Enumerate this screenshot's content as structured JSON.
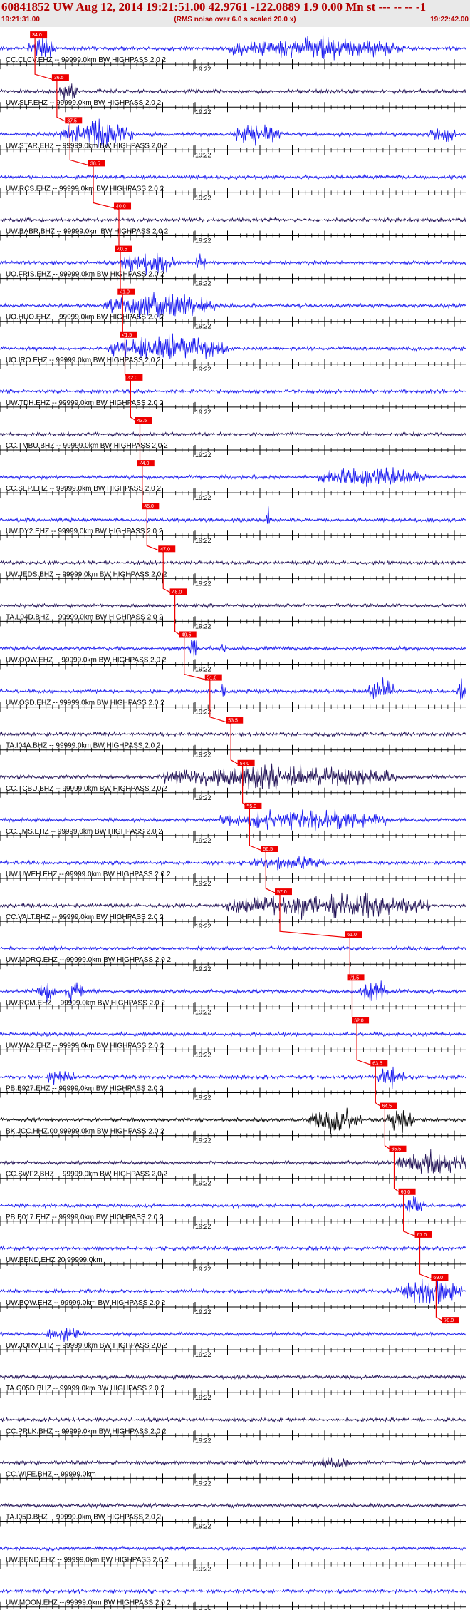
{
  "header": {
    "title": "60841852 UW Aug 12, 2014 19:21:51.00   42.9761 -122.0889  1.9 0.00 Mn st --- -- --   -1",
    "start_time": "19:21:31.00",
    "rms_note": "(RMS noise over 6.0 s scaled 20.0 x)",
    "end_time": "19:22:42.00"
  },
  "minute_label": "19:22",
  "colors": {
    "header_bg": "#e9e9e9",
    "header_text": "#b40000",
    "blue": "#1414ee",
    "dark": "#1a0a50",
    "pick": "#ee0000",
    "axis": "#000000"
  },
  "traces": [
    {
      "label": "CC.CLCV.EHZ -- 99999.0km BW  HIGHPASS  2.0  2",
      "color": "blue",
      "pick": "34.0",
      "pick_x": 0.075,
      "bursts": [
        [
          0.09,
          0.03,
          1.0
        ],
        [
          0.68,
          0.19,
          0.9
        ]
      ]
    },
    {
      "label": "UW.SLF.EHZ -- 99999.0km BW  HIGHPASS  2.0  2",
      "color": "dark",
      "pick": "36.5",
      "pick_x": 0.122,
      "bursts": [
        [
          0.145,
          0.02,
          1.0
        ]
      ]
    },
    {
      "label": "UW.STAR.EHZ -- 99999.0km BW  HIGHPASS  2.0  2",
      "color": "blue",
      "pick": "37.5",
      "pick_x": 0.15,
      "bursts": [
        [
          0.21,
          0.08,
          1.0
        ],
        [
          0.55,
          0.05,
          1.0
        ],
        [
          0.95,
          0.03,
          0.7
        ]
      ]
    },
    {
      "label": "UW.RCS.EHZ -- 99999.0km BW  HIGHPASS  2.0  2",
      "color": "blue",
      "pick": "38.5",
      "pick_x": 0.2,
      "bursts": []
    },
    {
      "label": "UW.BABR.BHZ -- 99999.0km BW  HIGHPASS  2.0  2",
      "color": "dark",
      "pick": "40.0",
      "pick_x": 0.255,
      "bursts": []
    },
    {
      "label": "UO.FRIS.EHZ -- 99999.0km BW  HIGHPASS  2.0  2",
      "color": "blue",
      "pick": "40.5",
      "pick_x": 0.258,
      "bursts": [
        [
          0.32,
          0.06,
          1.0
        ],
        [
          0.43,
          0.01,
          0.8
        ]
      ]
    },
    {
      "label": "UO.HUO.EHZ -- 99999.0km BW  HIGHPASS  2.0  2",
      "color": "blue",
      "pick": "41.0",
      "pick_x": 0.263,
      "bursts": [
        [
          0.34,
          0.12,
          1.0
        ]
      ]
    },
    {
      "label": "UO.IRO.EHZ -- 99999.0km BW  HIGHPASS  2.0  2",
      "color": "blue",
      "pick": "41.5",
      "pick_x": 0.268,
      "bursts": [
        [
          0.36,
          0.13,
          1.0
        ]
      ]
    },
    {
      "label": "UW.TDH.EHZ -- 99999.0km BW  HIGHPASS  2.0  2",
      "color": "blue",
      "pick": "42.0",
      "pick_x": 0.28,
      "bursts": []
    },
    {
      "label": "CC.TMBU.BHZ -- 99999.0km BW  HIGHPASS  2.0  2",
      "color": "dark",
      "pick": "43.5",
      "pick_x": 0.3,
      "bursts": []
    },
    {
      "label": "CC.SEP.EHZ -- 99999.0km BW  HIGHPASS  2.0  2",
      "color": "blue",
      "pick": "44.0",
      "pick_x": 0.305,
      "bursts": [
        [
          0.8,
          0.12,
          0.8
        ]
      ]
    },
    {
      "label": "UW.DY2.EHZ -- 99999.0km BW  HIGHPASS  2.0  2",
      "color": "blue",
      "pick": "45.0",
      "pick_x": 0.315,
      "bursts": [
        [
          0.575,
          0.005,
          0.9
        ]
      ]
    },
    {
      "label": "UW.JEDS.BHZ -- 99999.0km BW  HIGHPASS  2.0  2",
      "color": "dark",
      "pick": "47.0",
      "pick_x": 0.35,
      "bursts": []
    },
    {
      "label": "TA.L04D.BHZ -- 99999.0km BW  HIGHPASS  2.0  2",
      "color": "dark",
      "pick": "48.0",
      "pick_x": 0.375,
      "bursts": []
    },
    {
      "label": "UW.OOW.EHZ -- 99999.0km BW  HIGHPASS  2.0  2",
      "color": "blue",
      "pick": "49.5",
      "pick_x": 0.395,
      "bursts": [
        [
          0.415,
          0.01,
          1.0
        ],
        [
          0.48,
          0.005,
          1.0
        ]
      ]
    },
    {
      "label": "UW.OSD.EHZ -- 99999.0km BW  HIGHPASS  2.0  2",
      "color": "blue",
      "pick": "51.0",
      "pick_x": 0.45,
      "bursts": [
        [
          0.48,
          0.005,
          1.0
        ],
        [
          0.82,
          0.03,
          1.0
        ],
        [
          0.99,
          0.01,
          1.0
        ]
      ]
    },
    {
      "label": "TA.I04A.BHZ -- 99999.0km BW  HIGHPASS  2.0  2",
      "color": "dark",
      "pick": "53.5",
      "pick_x": 0.495,
      "bursts": []
    },
    {
      "label": "CC.TCBU.BHZ -- 99999.0km BW  HIGHPASS  2.0  2",
      "color": "dark",
      "pick": "54.0",
      "pick_x": 0.52,
      "bursts": [
        [
          0.6,
          0.25,
          1.0
        ]
      ]
    },
    {
      "label": "CC.LMS.EHZ -- 99999.0km BW  HIGHPASS  2.0  2",
      "color": "blue",
      "pick": "55.0",
      "pick_x": 0.535,
      "bursts": [
        [
          0.65,
          0.18,
          0.9
        ]
      ]
    },
    {
      "label": "UW.UWEH.EHZ -- 99999.0km BW  HIGHPASS  2.0  2",
      "color": "blue",
      "pick": "56.5",
      "pick_x": 0.57,
      "bursts": [
        [
          0.62,
          0.08,
          0.6
        ]
      ]
    },
    {
      "label": "CC.VALT.BHZ -- 99999.0km BW  HIGHPASS  2.0  2",
      "color": "dark",
      "pick": "57.0",
      "pick_x": 0.6,
      "bursts": [
        [
          0.7,
          0.22,
          1.0
        ]
      ]
    },
    {
      "label": "UW.MORO.EHZ -- 99999.0km BW  HIGHPASS  2.0  2",
      "color": "blue",
      "pick": "61.0",
      "pick_x": 0.75,
      "bursts": []
    },
    {
      "label": "UW.RCM.EHZ -- 99999.0km BW  HIGHPASS  2.0  2",
      "color": "blue",
      "pick": "61.5",
      "pick_x": 0.755,
      "bursts": [
        [
          0.1,
          0.02,
          0.8
        ],
        [
          0.16,
          0.02,
          1.0
        ],
        [
          0.8,
          0.03,
          1.0
        ]
      ]
    },
    {
      "label": "UW.WA2.EHZ -- 99999.0km BW  HIGHPASS  2.0  2",
      "color": "blue",
      "pick": "62.0",
      "pick_x": 0.765,
      "bursts": []
    },
    {
      "label": "PB.B927.EHZ -- 99999.0km BW  HIGHPASS  2.0  2",
      "color": "blue",
      "pick": "63.5",
      "pick_x": 0.805,
      "bursts": [
        [
          0.13,
          0.03,
          0.7
        ],
        [
          0.84,
          0.03,
          0.9
        ]
      ]
    },
    {
      "label": "BK.JCC.HHZ.00 99999.0km BW  HIGHPASS  2.0  2",
      "color": "black",
      "pick": "64.5",
      "pick_x": 0.825,
      "bursts": [
        [
          0.72,
          0.06,
          1.0
        ],
        [
          0.86,
          0.03,
          1.0
        ]
      ]
    },
    {
      "label": "CC.SWF2.BHZ -- 99999.0km BW  HIGHPASS  2.0  2",
      "color": "dark",
      "pick": "65.5",
      "pick_x": 0.845,
      "bursts": [
        [
          0.93,
          0.08,
          1.0
        ]
      ]
    },
    {
      "label": "PB.B017.EHZ -- 99999.0km BW  HIGHPASS  2.0  2",
      "color": "blue",
      "pick": "66.0",
      "pick_x": 0.865,
      "bursts": [
        [
          0.89,
          0.02,
          0.9
        ]
      ]
    },
    {
      "label": "UW.BEND.EHZ 20 99999.0km",
      "color": "blue",
      "pick": "67.0",
      "pick_x": 0.9,
      "bursts": []
    },
    {
      "label": "UW.BOW.EHZ -- 99999.0km BW  HIGHPASS  2.0  2",
      "color": "blue",
      "pick": "69.0",
      "pick_x": 0.935,
      "bursts": [
        [
          0.92,
          0.07,
          1.0
        ]
      ]
    },
    {
      "label": "UW.JORV.EHZ -- 99999.0km BW  HIGHPASS  2.0  2",
      "color": "blue",
      "pick": "70.0",
      "pick_x": 0.958,
      "bursts": [
        [
          0.14,
          0.04,
          0.6
        ]
      ]
    },
    {
      "label": "TA.G05D.BHZ -- 99999.0km BW  HIGHPASS  2.0  2",
      "color": "dark",
      "pick": "",
      "pick_x": null,
      "bursts": []
    },
    {
      "label": "CC.PRLK.BHZ -- 99999.0km BW  HIGHPASS  2.0  2",
      "color": "dark",
      "pick": "",
      "pick_x": null,
      "bursts": []
    },
    {
      "label": "CC.WIFE.BHZ -- 99999.0km",
      "color": "dark",
      "pick": "",
      "pick_x": null,
      "bursts": [
        [
          0.71,
          0.04,
          0.5
        ]
      ]
    },
    {
      "label": "TA.I05D.BHZ -- 99999.0km BW  HIGHPASS  2.0  2",
      "color": "dark",
      "pick": "",
      "pick_x": null,
      "bursts": []
    },
    {
      "label": "UW.BEND.EHZ -- 99999.0km BW  HIGHPASS  2.0  2",
      "color": "blue",
      "pick": "",
      "pick_x": null,
      "bursts": []
    },
    {
      "label": "UW.MOON.EHZ -- 99999.0km BW  HIGHPASS  2.0  2",
      "color": "blue",
      "pick": "",
      "pick_x": null,
      "bursts": []
    }
  ]
}
